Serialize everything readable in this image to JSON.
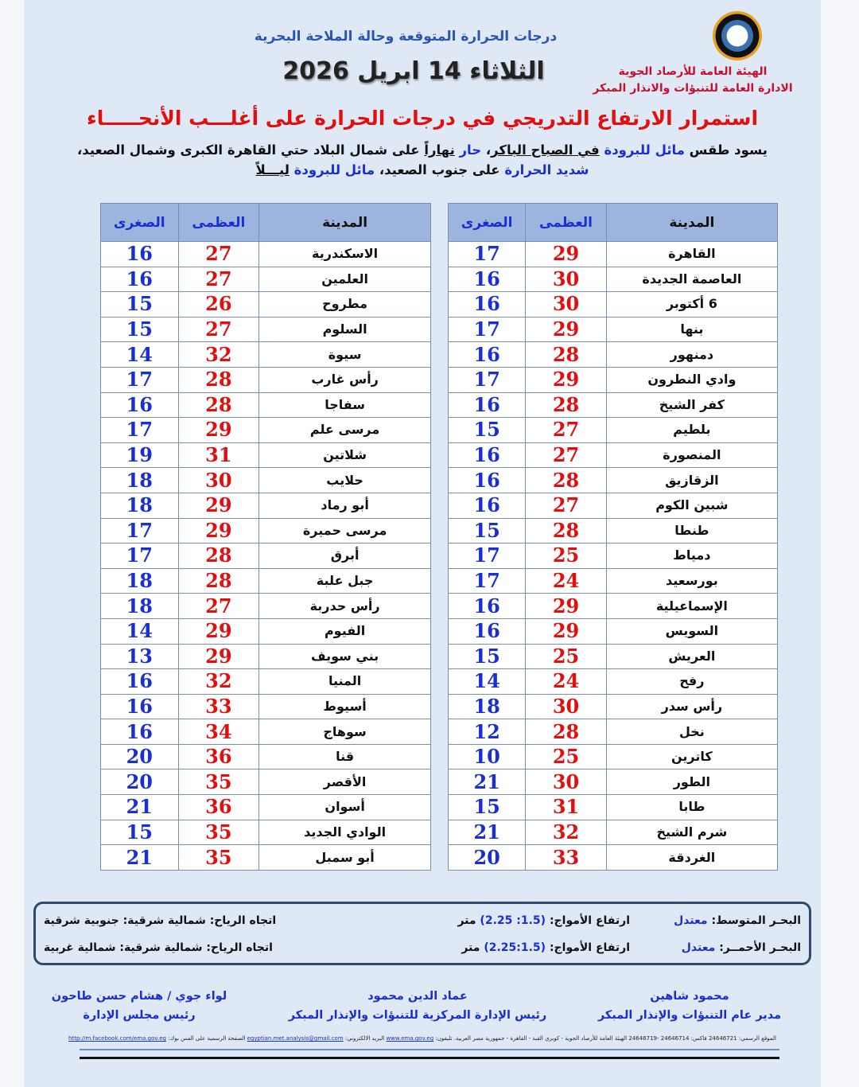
{
  "header": {
    "subtitle": "درجات الحرارة المتوقعة وحالة الملاحة البحرية",
    "date": "الثلاثاء 14 ابريل 2026",
    "org_line1": "الهيئة العامة للأرصاد الجوية",
    "org_line2": "الادارة العامة للتنبؤات والانذار  المبكر",
    "logo_icon": "ema-logo-icon"
  },
  "headline": "استمرار الارتفاع التدريجي في درجات الحرارة على أغلـــب الأنحـــــاء",
  "description": [
    {
      "t": "يسود طقس ",
      "s": ""
    },
    {
      "t": "مائل للبرودة",
      "s": "blue"
    },
    {
      "t": " ",
      "s": ""
    },
    {
      "t": "في الصباح الباكر",
      "s": "ul"
    },
    {
      "t": "، ",
      "s": ""
    },
    {
      "t": "حار",
      "s": "blue"
    },
    {
      "t": " ",
      "s": ""
    },
    {
      "t": "نهاراً",
      "s": "ul"
    },
    {
      "t": " على شمال البلاد حتي القاهرة الكبرى وشمال الصعيد، ",
      "s": ""
    },
    {
      "t": "شديد الحرارة",
      "s": "blue"
    },
    {
      "t": " على جنوب الصعيد، ",
      "s": ""
    },
    {
      "t": "مائل للبرودة",
      "s": "blue"
    },
    {
      "t": " ",
      "s": ""
    },
    {
      "t": "ليـــلاً",
      "s": "ul"
    }
  ],
  "table_headers": {
    "city": "المدينة",
    "max": "العظمى",
    "min": "الصغرى"
  },
  "colors": {
    "max": "#e01010",
    "min": "#1a2fd0",
    "header_bg": "#9db5de"
  },
  "right_table": [
    [
      "القاهرة",
      "29",
      "17"
    ],
    [
      "العاصمة الجديدة",
      "30",
      "16"
    ],
    [
      "6 أكتوبر",
      "30",
      "16"
    ],
    [
      "بنها",
      "29",
      "17"
    ],
    [
      "دمنهور",
      "28",
      "16"
    ],
    [
      "وادي النطرون",
      "29",
      "17"
    ],
    [
      "كفر الشيخ",
      "28",
      "16"
    ],
    [
      "بلطيم",
      "27",
      "15"
    ],
    [
      "المنصورة",
      "27",
      "16"
    ],
    [
      "الزقازيق",
      "28",
      "16"
    ],
    [
      "شبين الكوم",
      "27",
      "16"
    ],
    [
      "طنطا",
      "28",
      "15"
    ],
    [
      "دمياط",
      "25",
      "17"
    ],
    [
      "بورسعيد",
      "24",
      "17"
    ],
    [
      "الإسماعيلية",
      "29",
      "16"
    ],
    [
      "السويس",
      "29",
      "16"
    ],
    [
      "العريش",
      "25",
      "15"
    ],
    [
      "رفح",
      "24",
      "14"
    ],
    [
      "رأس سدر",
      "30",
      "18"
    ],
    [
      "نخل",
      "28",
      "12"
    ],
    [
      "كاترين",
      "25",
      "10"
    ],
    [
      "الطور",
      "30",
      "21"
    ],
    [
      "طابا",
      "31",
      "15"
    ],
    [
      "شرم الشيخ",
      "32",
      "21"
    ],
    [
      "الغردقة",
      "33",
      "20"
    ]
  ],
  "left_table": [
    [
      "الاسكندرية",
      "27",
      "16"
    ],
    [
      "العلمين",
      "27",
      "16"
    ],
    [
      "مطروح",
      "26",
      "15"
    ],
    [
      "السلوم",
      "27",
      "15"
    ],
    [
      "سيوة",
      "32",
      "14"
    ],
    [
      "رأس غارب",
      "28",
      "17"
    ],
    [
      "سفاجا",
      "28",
      "16"
    ],
    [
      "مرسى علم",
      "29",
      "17"
    ],
    [
      "شلاتين",
      "31",
      "19"
    ],
    [
      "حلايب",
      "30",
      "18"
    ],
    [
      "أبو رماد",
      "29",
      "18"
    ],
    [
      "مرسى حميرة",
      "29",
      "17"
    ],
    [
      "أبرق",
      "28",
      "17"
    ],
    [
      "جبل علبة",
      "28",
      "18"
    ],
    [
      "رأس حدربة",
      "27",
      "18"
    ],
    [
      "الفيوم",
      "29",
      "14"
    ],
    [
      "بني سويف",
      "29",
      "13"
    ],
    [
      "المنيا",
      "32",
      "16"
    ],
    [
      "أسيوط",
      "33",
      "16"
    ],
    [
      "سوهاج",
      "34",
      "16"
    ],
    [
      "قنا",
      "36",
      "20"
    ],
    [
      "الأقصر",
      "35",
      "20"
    ],
    [
      "أسوان",
      "36",
      "21"
    ],
    [
      "الوادي الجديد",
      "35",
      "15"
    ],
    [
      "أبو سمبل",
      "35",
      "21"
    ]
  ],
  "sea": {
    "med_label": "البحـر المتوسط:",
    "med_state": "معتدل",
    "med_waves_label": "ارتفاع الأمواج:",
    "med_waves": "(1.5: 2.25)",
    "unit": "متر",
    "med_wind": "اتجاه الرياح: شمالية شرقية: جنوبية شرقية",
    "red_label": "البحـر الأحمــر:",
    "red_state": "معتدل",
    "red_waves_label": "ارتفاع الأمواج:",
    "red_waves": "(2.25:1.5)",
    "red_wind": "اتجاه الرياح: شمالية شرقية: شمالية غربية"
  },
  "signatures": [
    {
      "name": "محمود شاهين",
      "title": "مدير عام التنبؤات والإنذار المبكر"
    },
    {
      "name": "عماد الدين محمود",
      "title": "رئيس الإدارة المركزية للتنبؤات والإنذار المبكر"
    },
    {
      "name": "لواء جوي / هشام حسن طاحون",
      "title": "رئيس مجلس الإدارة"
    }
  ],
  "footer": {
    "website_label": "الموقع الرسمي:",
    "fax": "24646721 فاكس: 24646714 -24646719",
    "address": "الهيئة العامة للأرصاد الجوية - كوبري القبة - القاهرة - جمهورية مصر العربية. تليفون:",
    "website": "www.ema.gov.eg",
    "email_label": "البريد الالكتروني:",
    "email": "egyptian.met.analysis@gmail.com",
    "facebook_label": "الصفحة الرسمية على الفس بوك:",
    "facebook": "http://m.facebook.com/ema.gov.eg"
  }
}
